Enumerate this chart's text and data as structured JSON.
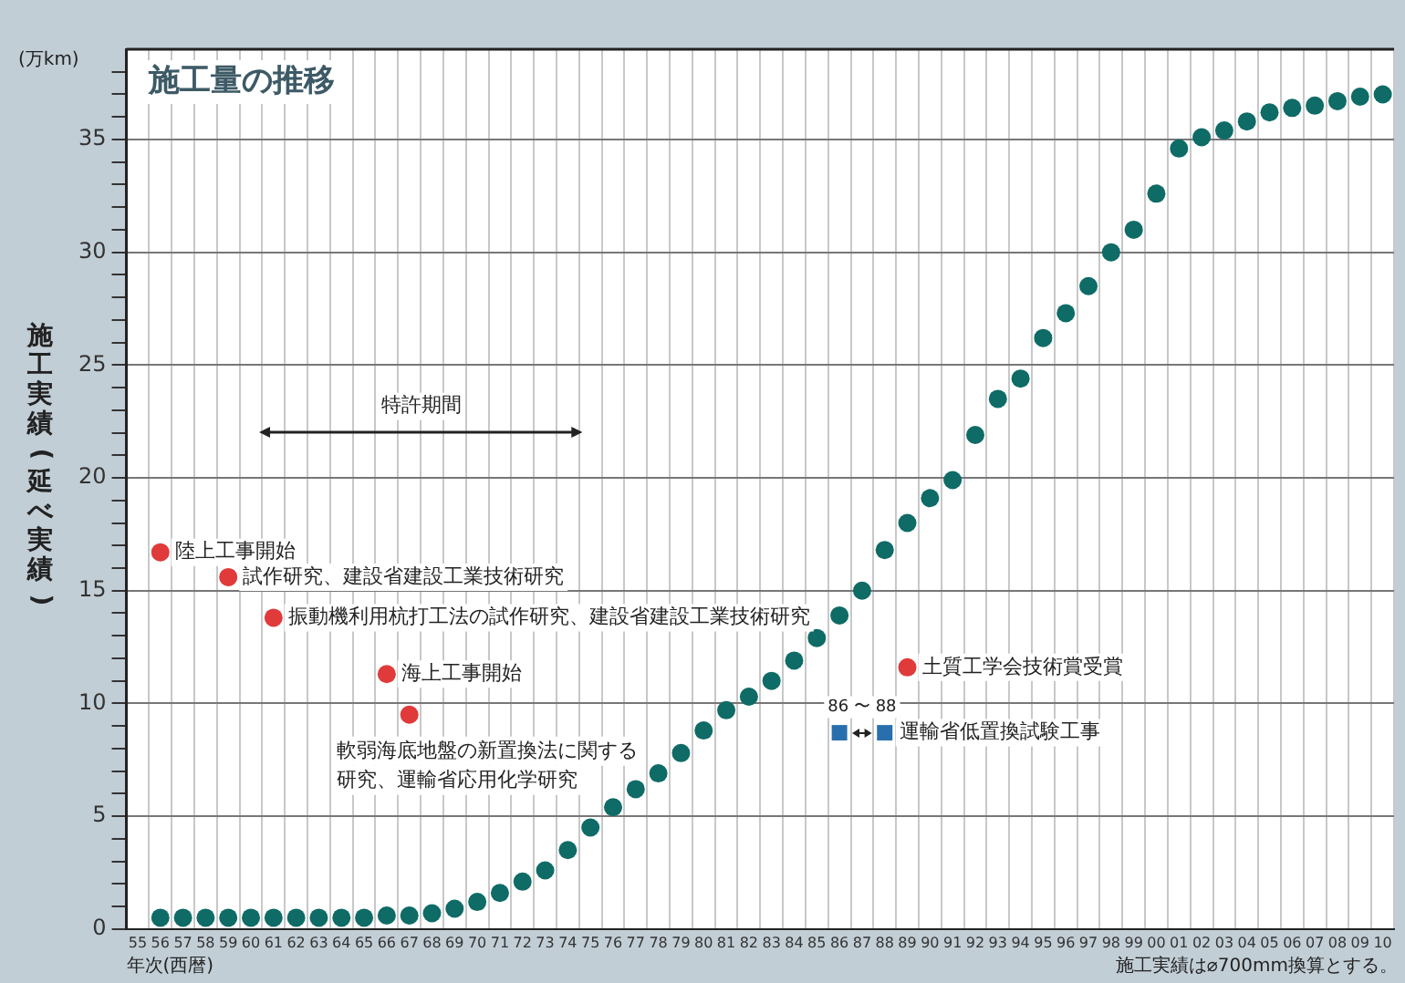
{
  "chart_data": {
    "type": "scatter",
    "title": "施工量の推移",
    "ylabel": "施工実績(延べ実績)",
    "xlabel": "年次(西暦)",
    "categories": [
      "55",
      "56",
      "57",
      "58",
      "59",
      "60",
      "61",
      "62",
      "63",
      "64",
      "65",
      "66",
      "67",
      "68",
      "69",
      "70",
      "71",
      "72",
      "73",
      "74",
      "75",
      "76",
      "77",
      "78",
      "79",
      "80",
      "81",
      "82",
      "83",
      "84",
      "85",
      "86",
      "87",
      "88",
      "89",
      "90",
      "91",
      "92",
      "93",
      "94",
      "95",
      "96",
      "97",
      "98",
      "99",
      "00",
      "01",
      "02",
      "03",
      "04",
      "05",
      "06",
      "07",
      "08",
      "09",
      "10"
    ],
    "series": [
      {
        "type": "scatter",
        "marker": "circle",
        "color": "#0e6b66",
        "values": [
          null,
          0.5,
          0.5,
          0.5,
          0.5,
          0.5,
          0.5,
          0.5,
          0.5,
          0.5,
          0.5,
          0.6,
          0.6,
          0.7,
          0.9,
          1.2,
          1.6,
          2.1,
          2.6,
          3.5,
          4.5,
          5.4,
          6.2,
          6.9,
          7.8,
          8.8,
          9.7,
          10.3,
          11.0,
          11.9,
          12.9,
          13.9,
          15.0,
          16.8,
          18.0,
          19.1,
          19.9,
          21.9,
          23.5,
          24.4,
          26.2,
          27.3,
          28.5,
          30.0,
          31.0,
          32.6,
          34.6,
          35.1,
          35.4,
          35.8,
          36.2,
          36.4,
          36.5,
          36.7,
          36.9,
          37.0
        ]
      },
      {
        "type": "scatter",
        "marker": "circle",
        "color": "#e03a3a",
        "values": [
          null,
          16.7,
          null,
          null,
          15.6,
          null,
          13.8,
          null,
          null,
          null,
          null,
          11.3,
          9.5,
          null,
          null,
          null,
          null,
          null,
          null,
          null,
          null,
          null,
          null,
          null,
          null,
          null,
          null,
          null,
          null,
          null,
          null,
          null,
          null,
          null,
          11.6,
          null,
          null,
          null,
          null,
          null,
          null,
          null,
          null,
          null,
          null,
          null,
          null,
          null,
          null,
          null,
          null,
          null,
          null,
          null,
          null,
          null
        ]
      },
      {
        "type": "scatter",
        "marker": "square",
        "color": "#2a6fad",
        "values": [
          null,
          null,
          null,
          null,
          null,
          null,
          null,
          null,
          null,
          null,
          null,
          null,
          null,
          null,
          null,
          null,
          null,
          null,
          null,
          null,
          null,
          null,
          null,
          null,
          null,
          null,
          null,
          null,
          null,
          null,
          null,
          8.7,
          null,
          8.7,
          null,
          null,
          null,
          null,
          null,
          null,
          null,
          null,
          null,
          null,
          null,
          null,
          null,
          null,
          null,
          null,
          null,
          null,
          null,
          null,
          null,
          null
        ]
      }
    ],
    "ylim": [
      0,
      39
    ],
    "yticks": [
      0,
      {
        "value": 1,
        "label": null
      },
      {
        "value": 2,
        "label": null
      },
      {
        "value": 3,
        "label": null
      },
      {
        "value": 4,
        "label": null
      },
      5,
      {
        "value": 6,
        "label": null
      },
      {
        "value": 7,
        "label": null
      },
      {
        "value": 8,
        "label": null
      },
      {
        "value": 9,
        "label": null
      },
      10,
      {
        "value": 11,
        "label": null
      },
      {
        "value": 12,
        "label": null
      },
      {
        "value": 13,
        "label": null
      },
      {
        "value": 14,
        "label": null
      },
      15,
      {
        "value": 16,
        "label": null
      },
      {
        "value": 17,
        "label": null
      },
      {
        "value": 18,
        "label": null
      },
      {
        "value": 19,
        "label": null
      },
      20,
      {
        "value": 21,
        "label": null
      },
      {
        "value": 22,
        "label": null
      },
      {
        "value": 23,
        "label": null
      },
      {
        "value": 24,
        "label": null
      },
      25,
      {
        "value": 26,
        "label": null
      },
      {
        "value": 27,
        "label": null
      },
      {
        "value": 28,
        "label": null
      },
      {
        "value": 29,
        "label": null
      },
      30,
      {
        "value": 31,
        "label": null
      },
      {
        "value": 32,
        "label": null
      },
      {
        "value": 33,
        "label": null
      },
      {
        "value": 34,
        "label": null
      },
      35,
      {
        "value": 36,
        "label": null
      },
      {
        "value": 37,
        "label": null
      },
      {
        "value": 38,
        "label": null
      }
    ],
    "grid": true,
    "legend": false,
    "annotations": [
      "(万km)",
      "施工実績は⌀700mm換算とする。",
      "特許期間",
      "86 〜 88",
      {
        "text": "陸上工事開始",
        "x": "56",
        "y": 16.7
      },
      {
        "text": "試作研究、建設省建設工業技術研究",
        "x": "59",
        "y": 15.6
      },
      {
        "text": "振動機利用杭打工法の試作研究、建設省建設工業技術研究",
        "x": "61",
        "y": 13.8
      },
      {
        "text": "海上工事開始",
        "x": "66",
        "y": 11.3
      },
      {
        "text": "軟弱海底地盤の新置換法に関する研究、運輸省応用化学研究",
        "x": "67",
        "y": 9.5
      },
      {
        "text": "土質工学会技術賞受賞",
        "x": "89",
        "y": 11.6
      },
      {
        "text": "運輸省低置換試験工事",
        "x": "88",
        "y": 8.7
      }
    ]
  }
}
